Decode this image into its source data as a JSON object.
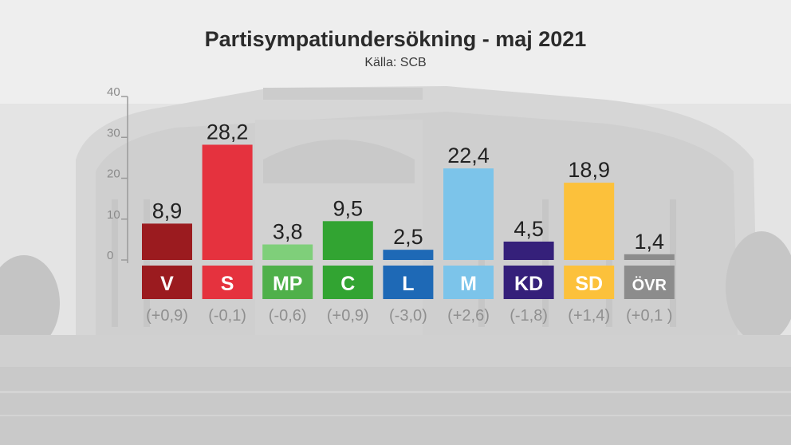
{
  "chart_data": {
    "type": "bar",
    "title": "Partisympatiundersökning - maj 2021",
    "subtitle": "Källa: SCB",
    "categories": [
      "V",
      "S",
      "MP",
      "C",
      "L",
      "M",
      "KD",
      "SD",
      "ÖVR"
    ],
    "values": [
      8.9,
      28.2,
      3.8,
      9.5,
      2.5,
      22.4,
      4.5,
      18.9,
      1.4
    ],
    "value_labels": [
      "8,9",
      "28,2",
      "3,8",
      "9,5",
      "2,5",
      "22,4",
      "4,5",
      "18,9",
      "1,4"
    ],
    "changes": [
      "(+0,9)",
      "(-0,1)",
      "(-0,6)",
      "(+0,9)",
      "(-3,0)",
      "(+2,6)",
      "(-1,8)",
      "(+1,4)",
      "(+0,1 )"
    ],
    "colors": [
      "#9b1b1f",
      "#e5323e",
      "#7fcf7a",
      "#32a432",
      "#1e69b6",
      "#7cc4ea",
      "#35207a",
      "#fcc13b",
      "#8c8c8c"
    ],
    "label_colors": [
      "#9b1b1f",
      "#e5323e",
      "#4fb04a",
      "#32a432",
      "#1e69b6",
      "#7cc4ea",
      "#35207a",
      "#fcc13b",
      "#8c8c8c"
    ],
    "ylim": [
      0,
      40
    ],
    "yticks": [
      0,
      10,
      20,
      30,
      40
    ],
    "grid": false
  }
}
